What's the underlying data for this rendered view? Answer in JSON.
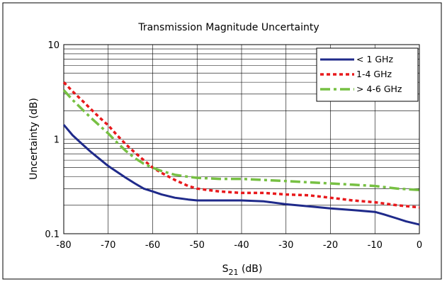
{
  "chart_data": {
    "type": "line",
    "title": "Transmission Magnitude Uncertainty",
    "xlabel_main": "S",
    "xlabel_sub": "21",
    "xlabel_unit": " (dB)",
    "ylabel": "Uncertainty (dB)",
    "xlim": [
      -80,
      0
    ],
    "ylim": [
      0.1,
      10
    ],
    "yscale": "log",
    "grid": true,
    "legend_position": "top-right",
    "x_ticks": [
      "-80",
      "-70",
      "-60",
      "-50",
      "-40",
      "-30",
      "-20",
      "-10",
      "0"
    ],
    "y_ticks": [
      "0.1",
      "1",
      "10"
    ],
    "series": [
      {
        "name": "< 1 GHz",
        "color": "#1f2a8a",
        "style": "solid",
        "x": [
          -80,
          -78,
          -76,
          -74,
          -72,
          -70,
          -68,
          -66,
          -64,
          -62,
          -60,
          -58,
          -55,
          -52,
          -50,
          -45,
          -40,
          -35,
          -30,
          -25,
          -20,
          -15,
          -10,
          -8,
          -5,
          -3,
          0
        ],
        "y": [
          1.42,
          1.1,
          0.9,
          0.74,
          0.62,
          0.52,
          0.45,
          0.39,
          0.34,
          0.3,
          0.28,
          0.26,
          0.24,
          0.23,
          0.225,
          0.225,
          0.225,
          0.22,
          0.205,
          0.195,
          0.185,
          0.178,
          0.17,
          0.16,
          0.145,
          0.135,
          0.125
        ]
      },
      {
        "name": "1-4 GHz",
        "color": "#e8191c",
        "style": "dotted",
        "x": [
          -80,
          -78,
          -76,
          -74,
          -72,
          -70,
          -68,
          -66,
          -64,
          -62,
          -60,
          -58,
          -55,
          -52,
          -50,
          -45,
          -40,
          -35,
          -30,
          -25,
          -20,
          -15,
          -10,
          -5,
          0
        ],
        "y": [
          4.0,
          3.2,
          2.6,
          2.1,
          1.7,
          1.4,
          1.1,
          0.88,
          0.72,
          0.6,
          0.5,
          0.44,
          0.37,
          0.32,
          0.3,
          0.28,
          0.27,
          0.27,
          0.26,
          0.255,
          0.24,
          0.225,
          0.215,
          0.2,
          0.19
        ]
      },
      {
        "name": "> 4-6 GHz",
        "color": "#77c043",
        "style": "dashdot",
        "x": [
          -80,
          -78,
          -76,
          -74,
          -72,
          -70,
          -68,
          -66,
          -64,
          -62,
          -60,
          -58,
          -55,
          -52,
          -50,
          -45,
          -40,
          -35,
          -30,
          -25,
          -20,
          -15,
          -10,
          -5,
          0
        ],
        "y": [
          3.3,
          2.6,
          2.1,
          1.7,
          1.4,
          1.15,
          0.92,
          0.75,
          0.63,
          0.55,
          0.5,
          0.46,
          0.42,
          0.4,
          0.39,
          0.38,
          0.38,
          0.37,
          0.36,
          0.35,
          0.34,
          0.33,
          0.32,
          0.3,
          0.29
        ]
      }
    ]
  }
}
